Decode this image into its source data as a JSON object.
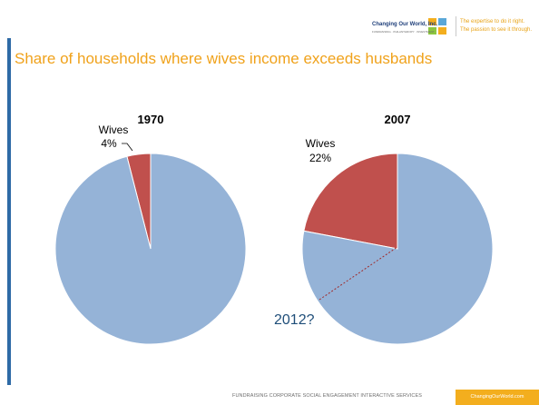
{
  "header": {
    "logo_name": "Changing Our World, Inc.",
    "logo_sub": "FUNDRAISING · PHILANTHROPY · INVESTMENT",
    "tagline_1": "The expertise to do it right.",
    "tagline_2": "The passion to see it through."
  },
  "slide": {
    "title": "Share of households where wives income exceeds husbands"
  },
  "chart_data": [
    {
      "type": "pie",
      "title": "1970",
      "slices": [
        {
          "label": "Wives",
          "value": 4,
          "value_label": "4%",
          "color": "#c0504d"
        },
        {
          "label": "",
          "value": 96,
          "value_label": "",
          "color": "#95b3d7"
        }
      ]
    },
    {
      "type": "pie",
      "title": "2007",
      "slices": [
        {
          "label": "Wives",
          "value": 22,
          "value_label": "22%",
          "color": "#c0504d"
        },
        {
          "label": "",
          "value": 78,
          "value_label": "",
          "color": "#95b3d7"
        }
      ],
      "annotation": "2012?"
    }
  ],
  "footer": {
    "services": "FUNDRAISING    CORPORATE SOCIAL ENGAGEMENT    INTERACTIVE SERVICES",
    "badge": "ChangingOurWorld.com"
  },
  "colors": {
    "accent": "#f0a21b",
    "wives": "#c0504d",
    "others": "#95b3d7",
    "annotation": "#1f4e79"
  }
}
